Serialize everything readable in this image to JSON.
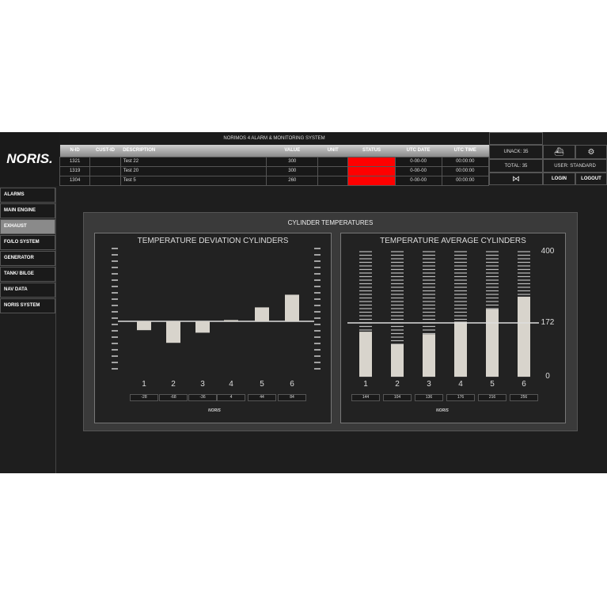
{
  "header": {
    "logo": "NORIS.",
    "title": "NORIMOS 4 ALARM & MONITORING SYSTEM"
  },
  "alarm_table": {
    "columns": [
      "N-ID",
      "CUST-ID",
      "DESCRIPTION",
      "VALUE",
      "UNIT",
      "STATUS",
      "UTC DATE",
      "UTC TIME"
    ],
    "rows": [
      {
        "nid": "1321",
        "cust": "",
        "desc": "Test 22",
        "value": "300",
        "unit": "",
        "status_color": "#ff0000",
        "date": "0-00-00",
        "time": "00:00:00"
      },
      {
        "nid": "1319",
        "cust": "",
        "desc": "Test 20",
        "value": "300",
        "unit": "",
        "status_color": "#ff0000",
        "date": "0-00-00",
        "time": "00:00:00"
      },
      {
        "nid": "1304",
        "cust": "",
        "desc": "Test 5",
        "value": "260",
        "unit": "",
        "status_color": "#ff0000",
        "date": "0-00-00",
        "time": "00:00:00"
      }
    ]
  },
  "status_panel": {
    "unack": "UNACK: 35",
    "total": "TOTAL: 35",
    "user": "USER: STANDARD",
    "login": "LOGIN",
    "logout": "LOGOUT",
    "icons": [
      "ship-icon",
      "gear-icon",
      "mute-horn-icon"
    ]
  },
  "sidebar": {
    "items": [
      {
        "label": "ALARMS"
      },
      {
        "label": "MAIN ENGINE"
      },
      {
        "label": "EXHAUST",
        "active": true
      },
      {
        "label": "FO/LO SYSTEM"
      },
      {
        "label": "GENERATOR"
      },
      {
        "label": "TANK/ BILGE"
      },
      {
        "label": "NAV DATA"
      },
      {
        "label": "NORIS SYSTEM"
      }
    ]
  },
  "panel": {
    "title": "CYLINDER TEMPERATURES",
    "watermark": "NORIS"
  },
  "chart_data": [
    {
      "type": "bar",
      "title": "TEMPERATURE DEVIATION CYLINDERS",
      "categories": [
        "1",
        "2",
        "3",
        "4",
        "5",
        "6"
      ],
      "values": [
        -28,
        -68,
        -36,
        4,
        44,
        84
      ],
      "value_labels": [
        "-28",
        "-68",
        "-36",
        "4",
        "44",
        "84"
      ],
      "bar_color": "#d8d4cc"
    },
    {
      "type": "bar",
      "title": "TEMPERATURE AVERAGE CYLINDERS",
      "categories": [
        "1",
        "2",
        "3",
        "4",
        "5",
        "6"
      ],
      "values": [
        144,
        104,
        136,
        176,
        216,
        256
      ],
      "value_labels": [
        "144",
        "104",
        "136",
        "176",
        "216",
        "256"
      ],
      "ylim": [
        0,
        400
      ],
      "ytick_labels": [
        "400",
        "172",
        "0"
      ],
      "reference_line": 172,
      "bar_color": "#d8d4cc"
    }
  ]
}
